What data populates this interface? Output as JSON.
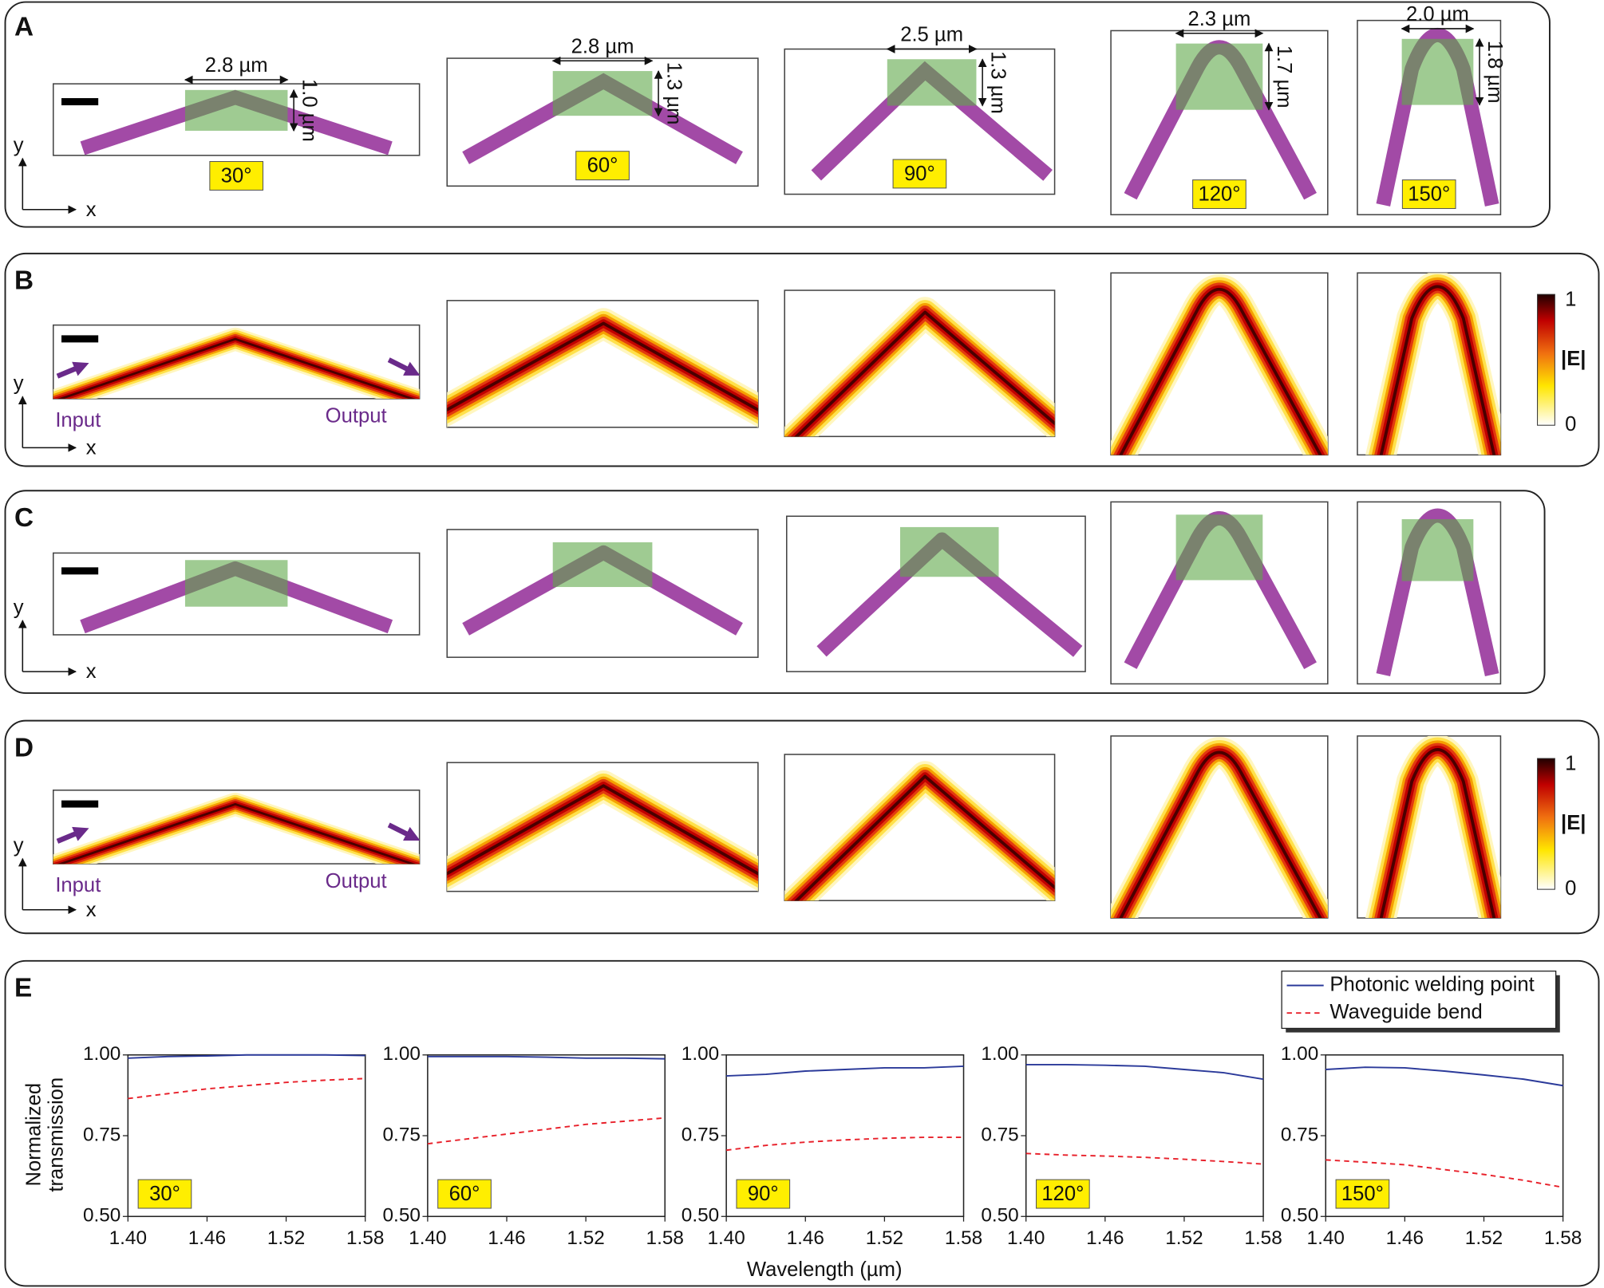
{
  "panels": {
    "A": {
      "label": "A",
      "axis_y": "y",
      "axis_x": "x",
      "items": [
        {
          "width": "2.8 µm",
          "height": "1.0 µm",
          "angle": "30°"
        },
        {
          "width": "2.8 µm",
          "height": "1.3 µm",
          "angle": "60°"
        },
        {
          "width": "2.5 µm",
          "height": "1.3 µm",
          "angle": "90°"
        },
        {
          "width": "2.3 µm",
          "height": "1.7 µm",
          "angle": "120°"
        },
        {
          "width": "2.0 µm",
          "height": "1.8 µm",
          "angle": "150°"
        }
      ]
    },
    "B": {
      "label": "B",
      "axis_y": "y",
      "axis_x": "x",
      "input": "Input",
      "output": "Output",
      "colorbar": {
        "max": "1",
        "label": "|E|",
        "min": "0"
      }
    },
    "C": {
      "label": "C",
      "axis_y": "y",
      "axis_x": "x"
    },
    "D": {
      "label": "D",
      "axis_y": "y",
      "axis_x": "x",
      "input": "Input",
      "output": "Output",
      "colorbar": {
        "max": "1",
        "label": "|E|",
        "min": "0"
      }
    },
    "E": {
      "label": "E"
    }
  },
  "chart_data": [
    {
      "type": "line",
      "annotation": "30°",
      "ylabel": [
        "Normalized",
        "transmission"
      ],
      "x": [
        1.4,
        1.43,
        1.46,
        1.49,
        1.52,
        1.55,
        1.58
      ],
      "series": [
        {
          "name": "Photonic welding point",
          "color": "#2b3a9a",
          "values": [
            0.99,
            0.995,
            0.997,
            1.0,
            1.0,
            1.0,
            0.998
          ]
        },
        {
          "name": "Waveguide bend",
          "color": "#e8202a",
          "values": [
            0.865,
            0.88,
            0.895,
            0.905,
            0.915,
            0.922,
            0.927
          ]
        }
      ],
      "xlim": [
        1.4,
        1.58
      ],
      "ylim": [
        0.5,
        1.0
      ],
      "xticks": [
        {
          "value": 1.4,
          "label": "1.40"
        },
        1.46,
        1.52,
        1.58
      ],
      "yticks": [
        {
          "value": 0.5,
          "label": "0.50"
        },
        0.75,
        {
          "value": 1,
          "label": "1.00"
        }
      ]
    },
    {
      "type": "line",
      "annotation": "60°",
      "x": [
        1.4,
        1.43,
        1.46,
        1.49,
        1.52,
        1.55,
        1.58
      ],
      "series": [
        {
          "color": "#2b3a9a",
          "values": [
            0.995,
            0.995,
            0.995,
            0.993,
            0.99,
            0.99,
            0.988
          ]
        },
        {
          "color": "#e8202a",
          "values": [
            0.725,
            0.74,
            0.755,
            0.77,
            0.785,
            0.795,
            0.805
          ]
        }
      ],
      "xlim": [
        1.4,
        1.58
      ],
      "ylim": [
        0.5,
        1.0
      ],
      "xticks": [
        {
          "value": 1.4,
          "label": "1.40"
        },
        1.46,
        1.52,
        1.58
      ],
      "yticks": [
        {
          "value": 0.5,
          "label": "0.50"
        },
        0.75,
        {
          "value": 1,
          "label": "1.00"
        }
      ]
    },
    {
      "type": "line",
      "annotation": "90°",
      "xlabel": "Wavelength (µm)",
      "x": [
        1.4,
        1.43,
        1.46,
        1.49,
        1.52,
        1.55,
        1.58
      ],
      "series": [
        {
          "color": "#2b3a9a",
          "values": [
            0.935,
            0.94,
            0.95,
            0.955,
            0.96,
            0.96,
            0.965
          ]
        },
        {
          "color": "#e8202a",
          "values": [
            0.705,
            0.72,
            0.73,
            0.737,
            0.742,
            0.745,
            0.745
          ]
        }
      ],
      "xlim": [
        1.4,
        1.58
      ],
      "ylim": [
        0.5,
        1.0
      ],
      "xticks": [
        {
          "value": 1.4,
          "label": "1.40"
        },
        1.46,
        1.52,
        1.58
      ],
      "yticks": [
        {
          "value": 0.5,
          "label": "0.50"
        },
        0.75,
        {
          "value": 1,
          "label": "1.00"
        }
      ]
    },
    {
      "type": "line",
      "annotation": "120°",
      "x": [
        1.4,
        1.43,
        1.46,
        1.49,
        1.52,
        1.55,
        1.58
      ],
      "series": [
        {
          "color": "#2b3a9a",
          "values": [
            0.97,
            0.97,
            0.968,
            0.965,
            0.955,
            0.945,
            0.925
          ]
        },
        {
          "color": "#e8202a",
          "values": [
            0.695,
            0.69,
            0.687,
            0.683,
            0.677,
            0.67,
            0.662
          ]
        }
      ],
      "xlim": [
        1.4,
        1.58
      ],
      "ylim": [
        0.5,
        1.0
      ],
      "xticks": [
        {
          "value": 1.4,
          "label": "1.40"
        },
        1.46,
        1.52,
        1.58
      ],
      "yticks": [
        {
          "value": 0.5,
          "label": "0.50"
        },
        0.75,
        {
          "value": 1,
          "label": "1.00"
        }
      ]
    },
    {
      "type": "line",
      "annotation": "150°",
      "x": [
        1.4,
        1.43,
        1.46,
        1.49,
        1.52,
        1.55,
        1.58
      ],
      "series": [
        {
          "color": "#2b3a9a",
          "values": [
            0.955,
            0.962,
            0.96,
            0.95,
            0.938,
            0.925,
            0.905
          ]
        },
        {
          "color": "#e8202a",
          "values": [
            0.675,
            0.668,
            0.66,
            0.645,
            0.63,
            0.612,
            0.59
          ]
        }
      ],
      "xlim": [
        1.4,
        1.58
      ],
      "ylim": [
        0.5,
        1.0
      ],
      "xticks": [
        {
          "value": 1.4,
          "label": "1.40"
        },
        1.46,
        1.52,
        1.58
      ],
      "yticks": [
        {
          "value": 0.5,
          "label": "0.50"
        },
        0.75,
        {
          "value": 1,
          "label": "1.00"
        }
      ]
    }
  ]
}
